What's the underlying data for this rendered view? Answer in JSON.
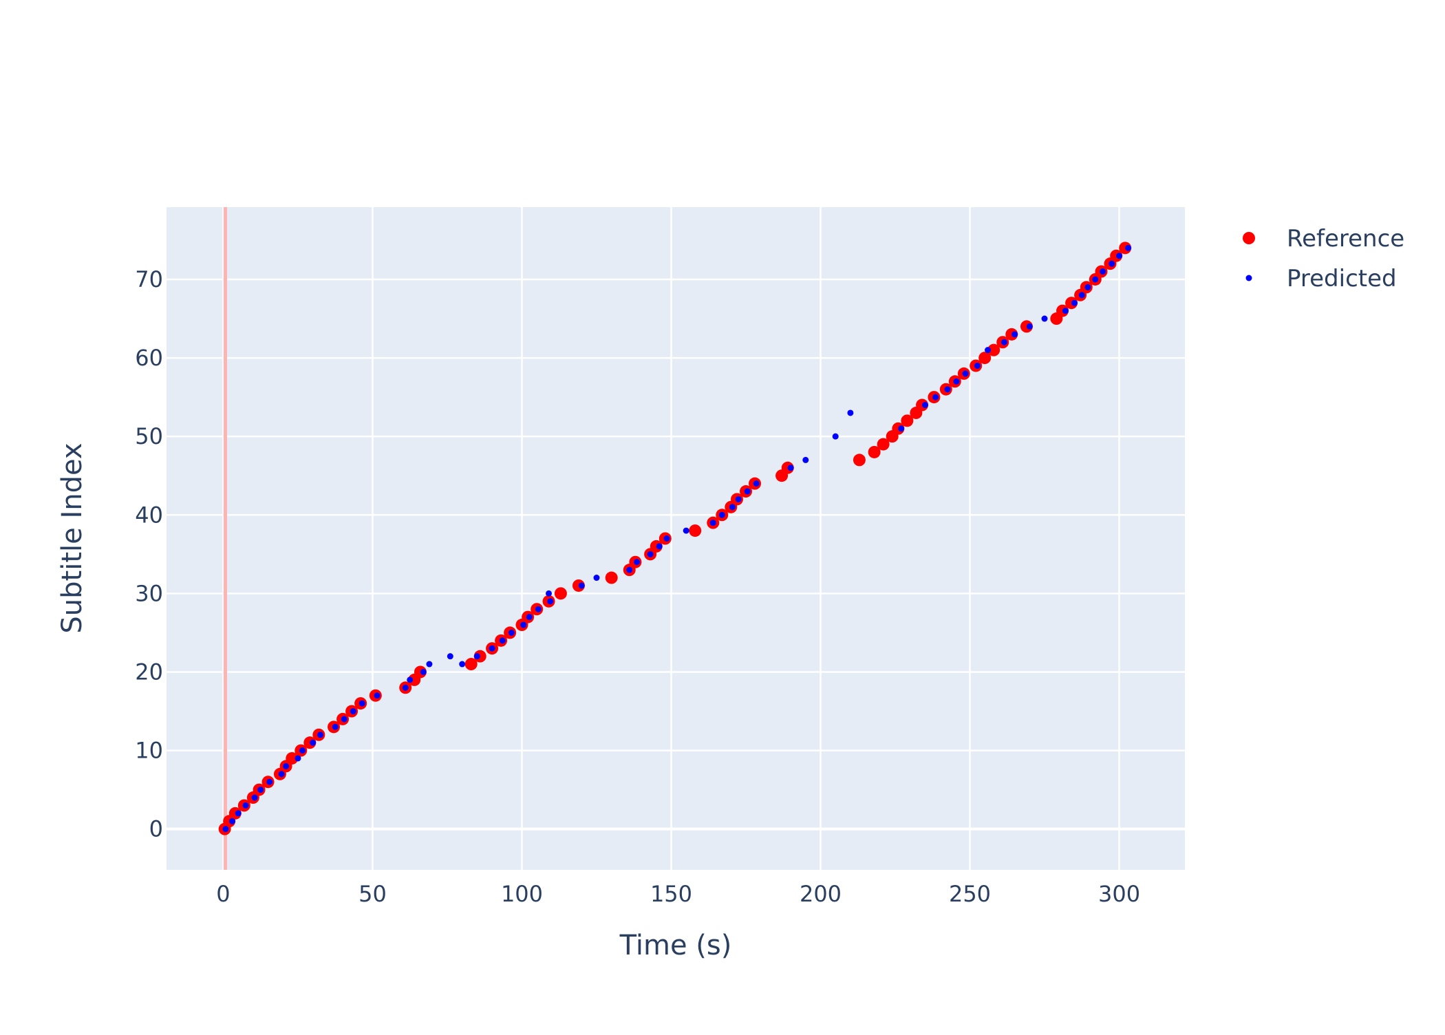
{
  "chart_data": {
    "type": "scatter",
    "title": "",
    "xlabel": "Time (s)",
    "ylabel": "Subtitle Index",
    "xlim": [
      -19,
      322
    ],
    "ylim": [
      -5.2,
      79.2
    ],
    "x_ticks": [
      0,
      50,
      100,
      150,
      200,
      250,
      300
    ],
    "y_ticks": [
      0,
      10,
      20,
      30,
      40,
      50,
      60,
      70
    ],
    "grid": true,
    "legend_position": "top-right",
    "reference_line": {
      "x": 0.7,
      "color": "#ffb3b3"
    },
    "series": [
      {
        "name": "Reference",
        "color": "#ff0000",
        "marker": "large-dot",
        "points": [
          [
            0.5,
            0
          ],
          [
            2,
            1
          ],
          [
            4,
            2
          ],
          [
            7,
            3
          ],
          [
            10,
            4
          ],
          [
            12,
            5
          ],
          [
            15,
            6
          ],
          [
            19,
            7
          ],
          [
            21,
            8
          ],
          [
            23,
            9
          ],
          [
            26,
            10
          ],
          [
            29,
            11
          ],
          [
            32,
            12
          ],
          [
            37,
            13
          ],
          [
            40,
            14
          ],
          [
            43,
            15
          ],
          [
            46,
            16
          ],
          [
            51,
            17
          ],
          [
            61,
            18
          ],
          [
            64,
            19
          ],
          [
            66,
            20
          ],
          [
            83,
            21
          ],
          [
            86,
            22
          ],
          [
            90,
            23
          ],
          [
            93,
            24
          ],
          [
            96,
            25
          ],
          [
            100,
            26
          ],
          [
            102,
            27
          ],
          [
            105,
            28
          ],
          [
            109,
            29
          ],
          [
            113,
            30
          ],
          [
            119,
            31
          ],
          [
            130,
            32
          ],
          [
            136,
            33
          ],
          [
            138,
            34
          ],
          [
            143,
            35
          ],
          [
            145,
            36
          ],
          [
            148,
            37
          ],
          [
            158,
            38
          ],
          [
            164,
            39
          ],
          [
            167,
            40
          ],
          [
            170,
            41
          ],
          [
            172,
            42
          ],
          [
            175,
            43
          ],
          [
            178,
            44
          ],
          [
            187,
            45
          ],
          [
            189,
            46
          ],
          [
            213,
            47
          ],
          [
            218,
            48
          ],
          [
            221,
            49
          ],
          [
            224,
            50
          ],
          [
            226,
            51
          ],
          [
            229,
            52
          ],
          [
            232,
            53
          ],
          [
            234,
            54
          ],
          [
            238,
            55
          ],
          [
            242,
            56
          ],
          [
            245,
            57
          ],
          [
            248,
            58
          ],
          [
            252,
            59
          ],
          [
            255,
            60
          ],
          [
            258,
            61
          ],
          [
            261,
            62
          ],
          [
            264,
            63
          ],
          [
            269,
            64
          ],
          [
            279,
            65
          ],
          [
            281,
            66
          ],
          [
            284,
            67
          ],
          [
            287,
            68
          ],
          [
            289,
            69
          ],
          [
            292,
            70
          ],
          [
            294,
            71
          ],
          [
            297,
            72
          ],
          [
            299,
            73
          ],
          [
            302,
            74
          ]
        ]
      },
      {
        "name": "Predicted",
        "color": "#0000ff",
        "marker": "small-dot",
        "points": [
          [
            0.8,
            0
          ],
          [
            3,
            1
          ],
          [
            5,
            2
          ],
          [
            7.5,
            3
          ],
          [
            10.5,
            4
          ],
          [
            12.5,
            5
          ],
          [
            15.5,
            6
          ],
          [
            19.5,
            7
          ],
          [
            21,
            8
          ],
          [
            25,
            9
          ],
          [
            26.5,
            10
          ],
          [
            30,
            11
          ],
          [
            32.5,
            12
          ],
          [
            37.5,
            13
          ],
          [
            40.5,
            14
          ],
          [
            43.5,
            15
          ],
          [
            46.5,
            16
          ],
          [
            51.5,
            17
          ],
          [
            61,
            18
          ],
          [
            62.5,
            19
          ],
          [
            67,
            20
          ],
          [
            69,
            21
          ],
          [
            76,
            22
          ],
          [
            80,
            21
          ],
          [
            85,
            22
          ],
          [
            90,
            23
          ],
          [
            93.5,
            24
          ],
          [
            96.5,
            25
          ],
          [
            100.5,
            26
          ],
          [
            102.5,
            27
          ],
          [
            105.5,
            28
          ],
          [
            109.5,
            29
          ],
          [
            109,
            30
          ],
          [
            120,
            31
          ],
          [
            125,
            32
          ],
          [
            136,
            33
          ],
          [
            138.5,
            34
          ],
          [
            143,
            35
          ],
          [
            146,
            36
          ],
          [
            148.5,
            37
          ],
          [
            155,
            38
          ],
          [
            164,
            39
          ],
          [
            167,
            40
          ],
          [
            170.5,
            41
          ],
          [
            172.5,
            42
          ],
          [
            175.5,
            43
          ],
          [
            178.5,
            44
          ],
          [
            190,
            46
          ],
          [
            195,
            47
          ],
          [
            205,
            50
          ],
          [
            210,
            53
          ],
          [
            227,
            51
          ],
          [
            235,
            54
          ],
          [
            238.5,
            55
          ],
          [
            242.5,
            56
          ],
          [
            245.5,
            57
          ],
          [
            248.5,
            58
          ],
          [
            252.5,
            59
          ],
          [
            256,
            61
          ],
          [
            261.5,
            62
          ],
          [
            265,
            63
          ],
          [
            270,
            64
          ],
          [
            275,
            65
          ],
          [
            282,
            66
          ],
          [
            285,
            67
          ],
          [
            287.5,
            68
          ],
          [
            289.5,
            69
          ],
          [
            292,
            70
          ],
          [
            294.5,
            71
          ],
          [
            297.5,
            72
          ],
          [
            300,
            73
          ],
          [
            303,
            74
          ]
        ]
      }
    ]
  }
}
